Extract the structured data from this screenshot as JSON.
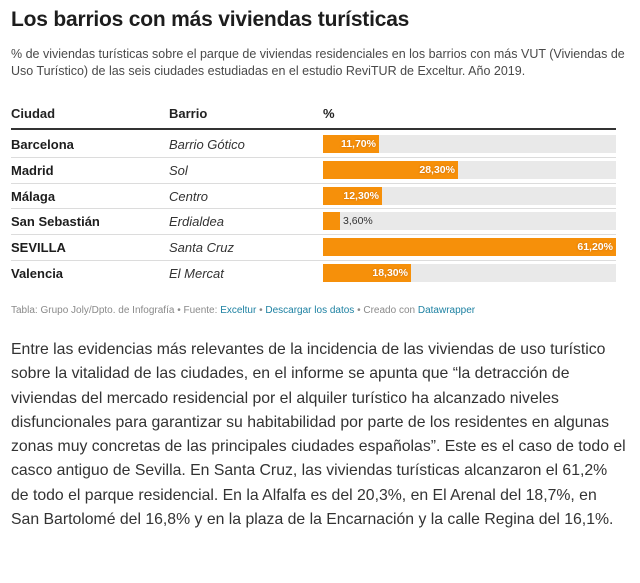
{
  "chart_data": {
    "type": "table",
    "title": "Los barrios con más viviendas turísticas",
    "subtitle": "% de viviendas turísticas sobre el parque de viviendas residenciales en los barrios con más VUT (Viviendas de Uso Turístico) de las seis ciudades estudiadas en el estudio ReviTUR de Exceltur. Año 2019.",
    "columns": [
      "Ciudad",
      "Barrio",
      "%"
    ],
    "rows": [
      {
        "city": "Barcelona",
        "barrio": "Barrio Gótico",
        "value": 11.7,
        "label": "11,70%"
      },
      {
        "city": "Madrid",
        "barrio": "Sol",
        "value": 28.3,
        "label": "28,30%"
      },
      {
        "city": "Málaga",
        "barrio": "Centro",
        "value": 12.3,
        "label": "12,30%"
      },
      {
        "city": "San Sebastián",
        "barrio": "Erdialdea",
        "value": 3.6,
        "label": "3,60%"
      },
      {
        "city": "SEVILLA",
        "barrio": "Santa Cruz",
        "value": 61.2,
        "label": "61,20%"
      },
      {
        "city": "Valencia",
        "barrio": "El Mercat",
        "value": 18.3,
        "label": "18,30%"
      }
    ],
    "xlim": [
      0,
      61.2
    ],
    "bar_color": "#f6900a",
    "track_color": "#e9e9e9"
  },
  "notes": {
    "prefix": "Tabla: Grupo Joly/Dpto. de Infografía • Fuente: ",
    "source_link": "Exceltur",
    "sep1": " • ",
    "download_link": "Descargar los datos",
    "sep2": " • Creado con ",
    "created_link": "Datawrapper"
  },
  "article": {
    "paragraph": "Entre las evidencias más relevantes de la incidencia de las viviendas de uso turístico sobre la vitalidad de las ciudades, en el informe se apunta que “la detracción de viviendas del mercado residencial por el alquiler turístico ha alcanzado niveles disfuncionales para garantizar su habitabilidad por parte de los residentes en algunas zonas muy concretas de las principales ciudades españolas”. Este es el caso de todo el casco antiguo de Sevilla. En Santa Cruz, las viviendas turísticas alcanzaron el 61,2% de todo el parque residencial. En la Alfalfa es del 20,3%, en El Arenal del 18,7%, en San Bartolomé del 16,8% y en la plaza de la Encarnación y la calle Regina del 16,1%."
  }
}
